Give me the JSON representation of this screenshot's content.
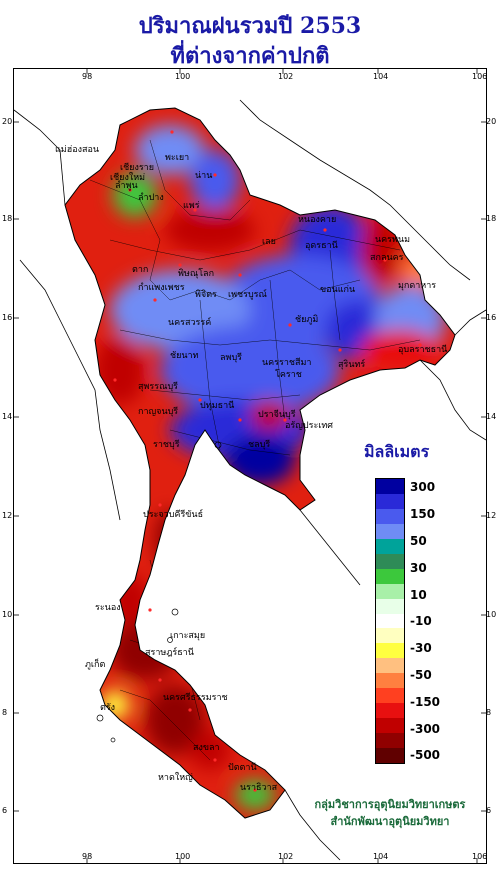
{
  "title": {
    "line1": "ปริมาณฝนรวมปี 2553",
    "line2": "ที่ต่างจากค่าปกติ"
  },
  "axes": {
    "longitude_ticks": [
      "98",
      "100",
      "102",
      "104",
      "106"
    ],
    "latitude_ticks": [
      "20",
      "18",
      "16",
      "14",
      "12",
      "10",
      "8",
      "6"
    ]
  },
  "legend": {
    "title": "มิลลิเมตร",
    "labels": [
      "300",
      "150",
      "50",
      "30",
      "10",
      "-10",
      "-30",
      "-50",
      "-150",
      "-300",
      "-500"
    ],
    "colors": [
      "#0000a0",
      "#2a2ad8",
      "#4a5aee",
      "#6f8cf5",
      "#00a39a",
      "#2e8b57",
      "#3cc83c",
      "#a8f0a8",
      "#e8ffe8",
      "#ffffff",
      "#ffffc0",
      "#ffff40",
      "#ffc080",
      "#ff8040",
      "#ff4020",
      "#e81010",
      "#c00000",
      "#900000",
      "#600000"
    ]
  },
  "places": [
    {
      "name": "เชียงราย"
    },
    {
      "name": "แม่ฮ่องสอน"
    },
    {
      "name": "เชียงใหม่"
    },
    {
      "name": "พะเยา"
    },
    {
      "name": "น่าน"
    },
    {
      "name": "ลำพูน"
    },
    {
      "name": "ลำปาง"
    },
    {
      "name": "แพร่"
    },
    {
      "name": "หนองคาย"
    },
    {
      "name": "นครพนม"
    },
    {
      "name": "อุดรธานี"
    },
    {
      "name": "สกลนคร"
    },
    {
      "name": "เลย"
    },
    {
      "name": "มุกดาหาร"
    },
    {
      "name": "ตาก"
    },
    {
      "name": "พิษณุโลก"
    },
    {
      "name": "ขอนแก่น"
    },
    {
      "name": "กำแพงเพชร"
    },
    {
      "name": "พิจิตร"
    },
    {
      "name": "เพชรบูรณ์"
    },
    {
      "name": "ชัยภูมิ"
    },
    {
      "name": "นครสวรรค์"
    },
    {
      "name": "อุบลราชธานี"
    },
    {
      "name": "ชัยนาท"
    },
    {
      "name": "ลพบุรี"
    },
    {
      "name": "นครราชสีมา"
    },
    {
      "name": "โคราช"
    },
    {
      "name": "สุรินทร์"
    },
    {
      "name": "สุพรรณบุรี"
    },
    {
      "name": "กาญจนบุรี"
    },
    {
      "name": "ปทุมธานี"
    },
    {
      "name": "ปราจีนบุรี"
    },
    {
      "name": "อรัญประเทศ"
    },
    {
      "name": "ราชบุรี"
    },
    {
      "name": "ชลบุรี"
    },
    {
      "name": "ประจวบคีรีขันธ์"
    },
    {
      "name": "ระนอง"
    },
    {
      "name": "เกาะสมุย"
    },
    {
      "name": "สุราษฎร์ธานี"
    },
    {
      "name": "ภูเก็ต"
    },
    {
      "name": "นครศรีธรรมราช"
    },
    {
      "name": "ตรัง"
    },
    {
      "name": "สงขลา"
    },
    {
      "name": "หาดใหญ่"
    },
    {
      "name": "ปัตตานี"
    },
    {
      "name": "นราธิวาส"
    }
  ],
  "credits": {
    "line1": "กลุ่มวิชาการอุตุนิยมวิทยาเกษตร",
    "line2": "สำนักพัฒนาอุตุนิยมวิทยา"
  }
}
